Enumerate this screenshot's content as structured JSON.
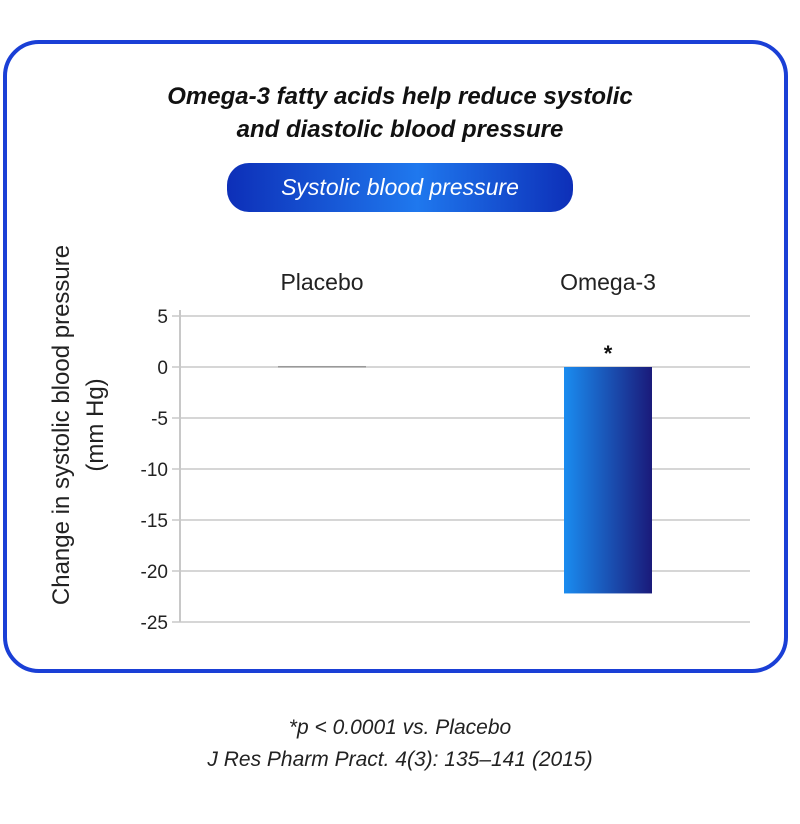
{
  "chart_data": {
    "type": "bar",
    "title": "Omega-3 fatty acids help reduce systolic and diastolic blood pressure",
    "title_lines": [
      "Omega-3 fatty acids help reduce systolic",
      "and diastolic blood pressure"
    ],
    "subtitle": "Systolic blood pressure",
    "categories": [
      "Placebo",
      "Omega-3"
    ],
    "values": [
      0.1,
      -22.2
    ],
    "ylabel_lines": [
      "Change in systolic blood pressure",
      "(mm Hg)"
    ],
    "ylim": [
      -25,
      5
    ],
    "yticks": [
      5,
      0,
      -5,
      -10,
      -15,
      -20,
      -25
    ],
    "ytick_labels": [
      "5",
      "0",
      "-5",
      "-10",
      "-15",
      "-20",
      "-25"
    ],
    "grid": true,
    "annotations": [
      {
        "category": "Omega-3",
        "text": "*"
      }
    ],
    "colors": {
      "frame": "#1a3fd6",
      "bar_light": "#1a8cf0",
      "bar_dark": "#1a1a7a",
      "grid": "#c8c8c8",
      "placebo_bar": "#999999"
    }
  },
  "footnotes": [
    "*p < 0.0001 vs. Placebo",
    "J Res Pharm Pract. 4(3): 135–141 (2015)"
  ]
}
